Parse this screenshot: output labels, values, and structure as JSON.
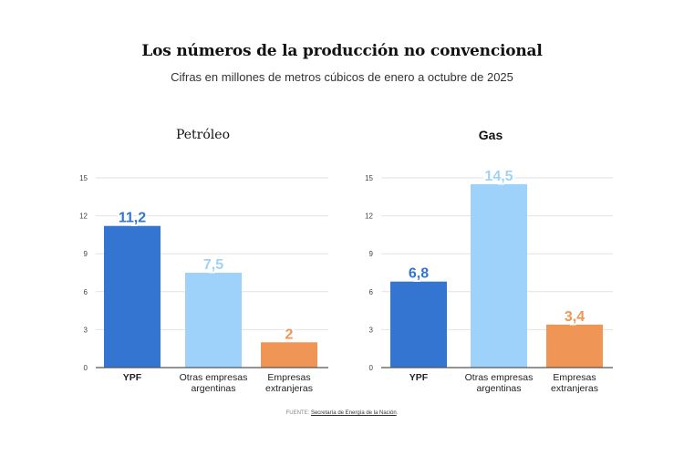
{
  "header": {
    "title": "Los números de la producción no convencional",
    "subtitle": "Cifras en millones de metros cúbicos de enero a octubre de 2025"
  },
  "source": {
    "prefix": "FUENTE: ",
    "link_text": "Secretaría de Energía de la Nación",
    "suffix": "."
  },
  "chart_data": [
    {
      "type": "bar",
      "title": "Petróleo",
      "categories": [
        "YPF",
        "Otras empresas argentinas",
        "Empresas extranjeras"
      ],
      "category_lines": [
        [
          "YPF"
        ],
        [
          "Otras empresas",
          "argentinas"
        ],
        [
          "Empresas",
          "extranjeras"
        ]
      ],
      "values": [
        11.2,
        7.5,
        2
      ],
      "value_labels": [
        "11,2",
        "7,5",
        "2"
      ],
      "colors": [
        "#3375d0",
        "#9fd2fa",
        "#ef9555"
      ],
      "label_colors": [
        "#3375d0",
        "#9fd2fa",
        "#ef9555"
      ],
      "yticks": [
        0,
        3,
        6,
        9,
        12,
        15
      ],
      "ylim": [
        0,
        15
      ],
      "xlabel": "",
      "ylabel": "",
      "grid": true,
      "legend": "none"
    },
    {
      "type": "bar",
      "title": "Gas",
      "categories": [
        "YPF",
        "Otras empresas argentinas",
        "Empresas extranjeras"
      ],
      "category_lines": [
        [
          "YPF"
        ],
        [
          "Otras empresas",
          "argentinas"
        ],
        [
          "Empresas",
          "extranjeras"
        ]
      ],
      "values": [
        6.8,
        14.5,
        3.4
      ],
      "value_labels": [
        "6,8",
        "14,5",
        "3,4"
      ],
      "colors": [
        "#3375d0",
        "#9fd2fa",
        "#ef9555"
      ],
      "label_colors": [
        "#3375d0",
        "#9fd2fa",
        "#ef9555"
      ],
      "yticks": [
        0,
        3,
        6,
        9,
        12,
        15
      ],
      "ylim": [
        0,
        15
      ],
      "xlabel": "",
      "ylabel": "",
      "grid": true,
      "legend": "none"
    }
  ]
}
